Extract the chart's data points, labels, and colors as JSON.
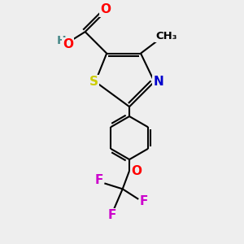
{
  "bg_color": "#eeeeee",
  "bond_color": "#000000",
  "bond_width": 1.5,
  "atom_colors": {
    "O": "#ff0000",
    "N": "#0000cc",
    "S": "#cccc00",
    "F": "#cc00cc",
    "H": "#4a8a8a",
    "C": "#000000"
  },
  "font_size": 11,
  "fig_width": 3.0,
  "fig_height": 3.0,
  "dpi": 100
}
